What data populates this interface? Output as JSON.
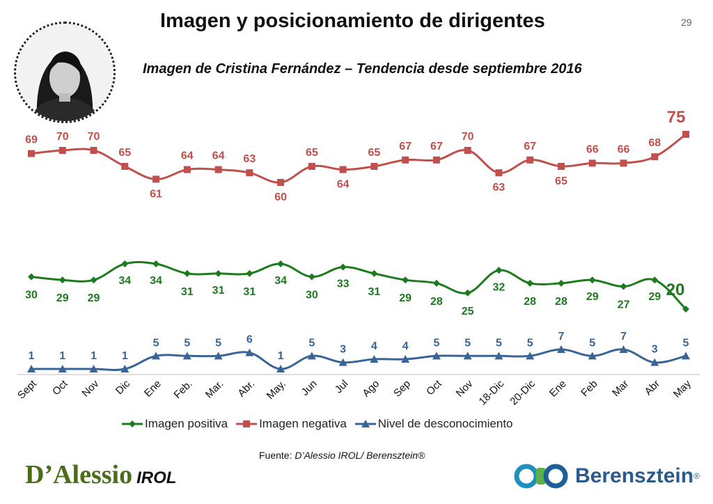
{
  "slide": {
    "title": "Imagen y posicionamiento de dirigentes",
    "page_number": "29",
    "subtitle": "Imagen de Cristina Fernández – Tendencia desde septiembre 2016",
    "source_prefix": "Fuente: ",
    "source_text": "D’Alessio IROL/ Berensztein®",
    "logo_left_main": "D’Alessio",
    "logo_left_suffix": "IROL",
    "logo_right_text": "Berensztein",
    "logo_right_mark": "®"
  },
  "colors": {
    "positive": "#1e7a1e",
    "negative": "#c0504d",
    "unknown": "#3a6496",
    "logo_green": "#4a6d1a",
    "logo_blue": "#2a5b8c"
  },
  "chart_data": {
    "type": "line",
    "categories": [
      "Sept",
      "Oct",
      "Nov",
      "Dic",
      "Ene",
      "Feb.",
      "Mar.",
      "Abr.",
      "May.",
      "Jun",
      "Jul",
      "Ago",
      "Sep",
      "Oct",
      "Nov",
      "18-Dic",
      "20-Dic",
      "Ene",
      "Feb",
      "Mar",
      "Abr",
      "May"
    ],
    "series": [
      {
        "name": "Imagen positiva",
        "marker": "diamond",
        "values": [
          30,
          29,
          29,
          34,
          34,
          31,
          31,
          31,
          34,
          30,
          33,
          31,
          29,
          28,
          25,
          32,
          28,
          28,
          29,
          27,
          29,
          20
        ]
      },
      {
        "name": "Imagen negativa",
        "marker": "square",
        "values": [
          69,
          70,
          70,
          65,
          61,
          64,
          64,
          63,
          60,
          65,
          64,
          65,
          67,
          67,
          70,
          63,
          67,
          65,
          66,
          66,
          68,
          75
        ]
      },
      {
        "name": "Nivel de desconocimiento",
        "marker": "triangle",
        "values": [
          1,
          1,
          1,
          1,
          5,
          5,
          5,
          6,
          1,
          5,
          3,
          4,
          4,
          5,
          5,
          5,
          5,
          7,
          5,
          7,
          3,
          5
        ]
      }
    ],
    "legend": "bottom",
    "grid": false
  }
}
